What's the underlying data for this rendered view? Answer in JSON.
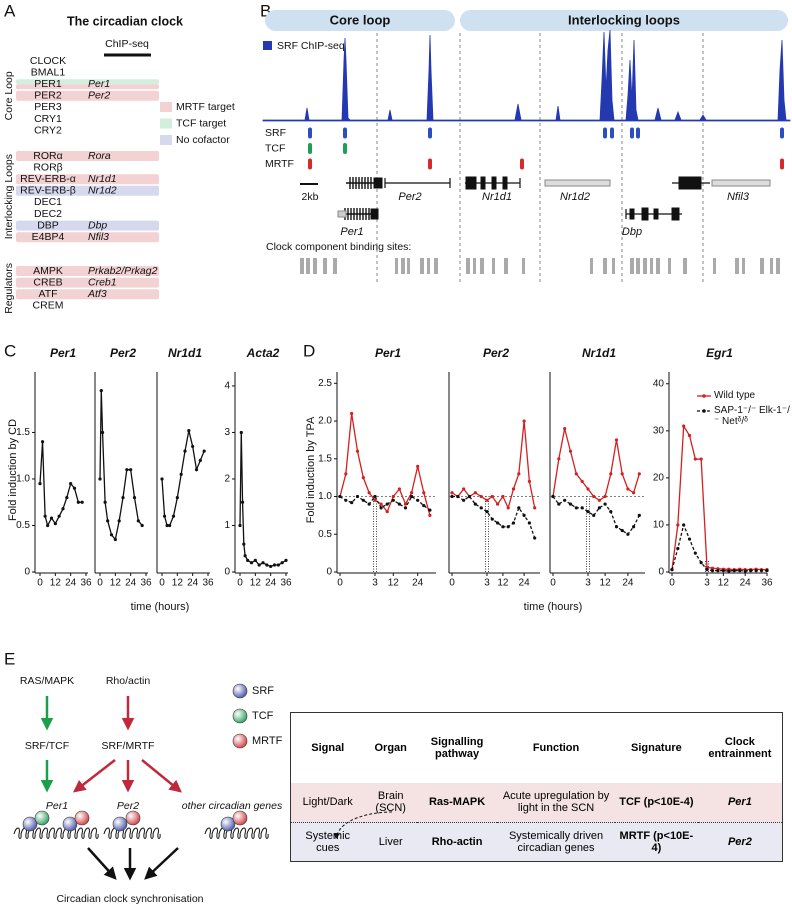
{
  "panels": {
    "A": {
      "label": "A",
      "title": "The circadian clock",
      "chipseq": "ChIP-seq",
      "sections": [
        {
          "name": "Core Loop",
          "rows": [
            {
              "protein": "CLOCK"
            },
            {
              "protein": "BMAL1"
            },
            {
              "protein": "PER1",
              "gene": "Per1",
              "colors": [
                "#d3eedd",
                "#f2d2d2"
              ]
            },
            {
              "protein": "PER2",
              "gene": "Per2",
              "colors": [
                "#f2d2d2"
              ]
            },
            {
              "protein": "PER3"
            },
            {
              "protein": "CRY1"
            },
            {
              "protein": "CRY2"
            }
          ]
        },
        {
          "name": "Interlocking Loops",
          "rows": [
            {
              "protein": "RORα",
              "gene": "Rora",
              "colors": [
                "#f2d2d2"
              ]
            },
            {
              "protein": "RORβ"
            },
            {
              "protein": "REV-ERB-α",
              "gene": "Nr1d1",
              "colors": [
                "#f2d2d2"
              ]
            },
            {
              "protein": "REV-ERB-β",
              "gene": "Nr1d2",
              "colors": [
                "#d6d9ee"
              ]
            },
            {
              "protein": "DEC1"
            },
            {
              "protein": "DEC2"
            },
            {
              "protein": "DBP",
              "gene": "Dbp",
              "colors": [
                "#d6d9ee"
              ]
            },
            {
              "protein": "E4BP4",
              "gene": "Nfil3",
              "colors": [
                "#f2d2d2"
              ]
            }
          ]
        },
        {
          "name": "Regulators",
          "rows": [
            {
              "protein": "AMPK",
              "gene": "Prkab2/Prkag2",
              "colors": [
                "#f2d2d2"
              ]
            },
            {
              "protein": "CREB",
              "gene": "Creb1",
              "colors": [
                "#f2d2d2"
              ]
            },
            {
              "protein": "ATF",
              "gene": "Atf3",
              "colors": [
                "#f2d2d2"
              ]
            },
            {
              "protein": "CREM"
            }
          ]
        }
      ],
      "legend": [
        {
          "name": "MRTF target",
          "color": "#f2d2d2"
        },
        {
          "name": "TCF target",
          "color": "#d3eedd"
        },
        {
          "name": "No cofactor",
          "color": "#d6d9ee"
        }
      ]
    },
    "B": {
      "label": "B",
      "headers": [
        "Core loop",
        "Interlocking loops"
      ],
      "legend": {
        "name": "SRF ChIP-seq",
        "color": "#2438b0"
      },
      "tracks": [
        {
          "name": "SRF",
          "color": "#2b4fc0"
        },
        {
          "name": "TCF",
          "color": "#1f9e55"
        },
        {
          "name": "MRTF",
          "color": "#d42a2a"
        }
      ],
      "genes": [
        "Per1",
        "Per2",
        "Nr1d1",
        "Nr1d2",
        "Dbp",
        "Nfil3"
      ],
      "scale": "2kb",
      "sites_label": "Clock component binding sites:"
    },
    "C": {
      "label": "C",
      "ylabel": "Fold induction by CD",
      "xlabel": "time (hours)"
    },
    "D": {
      "label": "D",
      "ylabel": "Fold induction by TPA",
      "xlabel": "time (hours)"
    },
    "E": {
      "label": "E",
      "diagram": {
        "inputs": [
          "RAS/MAPK",
          "Rho/actin"
        ],
        "mediators": [
          "SRF/TCF",
          "SRF/MRTF"
        ],
        "targets": [
          "Per1",
          "Per2",
          "other circadian genes"
        ],
        "outcome": "Circadian clock synchronisation",
        "legend": [
          {
            "name": "SRF",
            "color": "#4b55a8"
          },
          {
            "name": "TCF",
            "color": "#2fa060"
          },
          {
            "name": "MRTF",
            "color": "#d04040"
          }
        ]
      },
      "table": {
        "header": [
          "Signal",
          "Organ",
          "Signalling pathway",
          "Function",
          "Signature",
          "Clock entrainment"
        ],
        "rows": [
          [
            "Light/Dark",
            "Brain (SCN)",
            "Ras-MAPK",
            "Acute upregulation by light in the SCN",
            "TCF (p<10E-4)",
            "Per1"
          ],
          [
            "Systemic cues",
            "Liver",
            "Rho-actin",
            "Systemically driven circadian genes",
            "MRTF (p<10E-4)",
            "Per2"
          ]
        ]
      }
    }
  },
  "chart_data": [
    {
      "type": "line",
      "title": "Per1",
      "x": [
        0,
        2,
        4,
        6,
        9,
        12,
        15,
        18,
        21,
        24,
        27,
        30,
        33
      ],
      "series": [
        {
          "color": "#111111",
          "values": [
            0.95,
            1.4,
            0.6,
            0.5,
            0.58,
            0.52,
            0.6,
            0.68,
            0.8,
            0.95,
            0.9,
            0.75,
            0.75
          ]
        }
      ],
      "xlim": [
        0,
        36
      ],
      "xticks": [
        0,
        12,
        24,
        36
      ],
      "ylim": [
        0,
        2.15
      ],
      "yticks": [
        0,
        0.5,
        {
          "value": 1,
          "label": "1.0"
        },
        1.5
      ]
    },
    {
      "type": "line",
      "title": "Per2",
      "x": [
        0,
        1,
        2,
        4,
        6,
        9,
        12,
        15,
        18,
        21,
        24,
        27,
        30,
        33
      ],
      "series": [
        {
          "color": "#111111",
          "values": [
            1.0,
            1.95,
            1.5,
            0.75,
            0.55,
            0.4,
            0.35,
            0.55,
            0.8,
            1.1,
            1.1,
            0.8,
            0.55,
            0.5
          ]
        }
      ],
      "xlim": [
        0,
        36
      ],
      "xticks": [
        0,
        12,
        24,
        36
      ],
      "ylim": [
        0,
        2.15
      ]
    },
    {
      "type": "line",
      "title": "Nr1d1",
      "x": [
        0,
        2,
        4,
        6,
        9,
        12,
        15,
        18,
        21,
        24,
        27,
        30,
        33
      ],
      "series": [
        {
          "color": "#111111",
          "values": [
            1.0,
            0.6,
            0.5,
            0.5,
            0.6,
            0.8,
            1.05,
            1.3,
            1.52,
            1.35,
            1.1,
            1.2,
            1.3
          ]
        }
      ],
      "xlim": [
        0,
        36
      ],
      "xticks": [
        0,
        12,
        24,
        36
      ],
      "ylim": [
        0,
        2.15
      ]
    },
    {
      "type": "line",
      "title": "Acta2",
      "x": [
        0,
        1,
        2,
        3,
        4,
        6,
        9,
        12,
        15,
        18,
        21,
        24,
        27,
        30,
        33,
        36
      ],
      "series": [
        {
          "color": "#111111",
          "values": [
            1.0,
            3.0,
            1.5,
            0.6,
            0.35,
            0.25,
            0.2,
            0.25,
            0.15,
            0.2,
            0.15,
            0.12,
            0.15,
            0.15,
            0.2,
            0.25
          ]
        }
      ],
      "xlim": [
        0,
        36
      ],
      "xticks": [
        0,
        12,
        24,
        36
      ],
      "ylim": [
        0,
        4.3
      ],
      "yticks": [
        0,
        1,
        2,
        3,
        4
      ]
    },
    {
      "type": "line",
      "title": "Per1",
      "x": [
        0,
        0.5,
        1,
        1.5,
        2,
        2.5,
        3,
        6,
        9,
        12,
        15,
        18,
        21,
        24,
        27,
        30
      ],
      "series": [
        {
          "color": "#d42020",
          "values": [
            1.0,
            1.3,
            2.1,
            1.6,
            1.25,
            1.05,
            0.95,
            0.9,
            0.8,
            1.0,
            1.1,
            0.9,
            1.05,
            1.4,
            1.05,
            0.75
          ]
        },
        {
          "color": "#111111",
          "dash": true,
          "values": [
            1.0,
            0.95,
            0.92,
            1.0,
            0.95,
            0.9,
            1.0,
            0.85,
            0.9,
            0.95,
            0.9,
            0.85,
            1.0,
            0.95,
            0.88,
            0.82
          ]
        }
      ],
      "xlim": [
        0,
        33
      ],
      "xticks": [
        0,
        3,
        12,
        24
      ],
      "refline": 1,
      "vline": 3,
      "ylim": [
        0,
        2.65
      ],
      "yticks": [
        0,
        0.5,
        {
          "value": 1,
          "label": "1.0"
        },
        1.5,
        {
          "value": 2,
          "label": "2.0"
        },
        2.5
      ]
    },
    {
      "type": "line",
      "title": "Per2",
      "x": [
        0,
        0.5,
        1,
        1.5,
        2,
        2.5,
        3,
        6,
        9,
        12,
        15,
        18,
        21,
        24,
        27,
        30
      ],
      "series": [
        {
          "color": "#d42020",
          "values": [
            1.05,
            1.0,
            1.1,
            1.0,
            1.05,
            1.0,
            0.95,
            1.0,
            0.9,
            1.0,
            0.85,
            1.1,
            1.3,
            2.0,
            1.2,
            0.85
          ]
        },
        {
          "color": "#111111",
          "dash": true,
          "values": [
            1.0,
            1.0,
            0.95,
            1.0,
            0.9,
            0.85,
            0.8,
            0.7,
            0.65,
            0.6,
            0.6,
            0.65,
            0.85,
            0.75,
            0.65,
            0.45
          ]
        }
      ],
      "xlim": [
        0,
        33
      ],
      "xticks": [
        0,
        3,
        12,
        24
      ],
      "refline": 1,
      "vline": 3,
      "ylim": [
        0,
        2.65
      ]
    },
    {
      "type": "line",
      "title": "Nr1d1",
      "x": [
        0,
        0.5,
        1,
        1.5,
        2,
        2.5,
        3,
        6,
        9,
        12,
        15,
        18,
        21,
        24,
        27,
        30
      ],
      "series": [
        {
          "color": "#d42020",
          "values": [
            1.0,
            1.5,
            1.9,
            1.6,
            1.3,
            1.2,
            1.1,
            1.0,
            0.95,
            1.0,
            1.3,
            1.75,
            1.3,
            1.1,
            1.05,
            1.3
          ]
        },
        {
          "color": "#111111",
          "dash": true,
          "values": [
            1.0,
            0.9,
            0.95,
            0.9,
            0.85,
            0.85,
            0.8,
            0.75,
            0.85,
            0.9,
            0.8,
            0.6,
            0.55,
            0.5,
            0.6,
            0.75
          ]
        }
      ],
      "xlim": [
        0,
        33
      ],
      "xticks": [
        0,
        3,
        12,
        24
      ],
      "refline": 1,
      "vline": 3,
      "ylim": [
        0,
        2.65
      ]
    },
    {
      "type": "line",
      "title": "Egr1",
      "x": [
        0,
        0.5,
        1,
        1.5,
        2,
        2.5,
        3,
        6,
        9,
        12,
        15,
        18,
        21,
        24,
        27,
        30,
        33,
        36
      ],
      "series": [
        {
          "name": "Wild type",
          "color": "#d42020",
          "values": [
            0.5,
            10,
            31,
            29,
            24,
            24,
            1.0,
            0.8,
            0.7,
            0.6,
            0.6,
            0.5,
            0.6,
            0.5,
            0.5,
            0.6,
            0.5,
            0.5
          ]
        },
        {
          "name": "SAP-1⁻/⁻ Elk-1⁻/⁻ Netᵟ/ᵟ",
          "color": "#111111",
          "dash": true,
          "values": [
            0.5,
            5,
            10,
            7,
            4,
            2,
            0.5,
            0.3,
            0.3,
            0.3,
            0.2,
            0.3,
            0.3,
            0.2,
            0.3,
            0.3,
            0.3,
            0.3
          ]
        }
      ],
      "xlim": [
        0,
        36
      ],
      "xticks": [
        0,
        3,
        12,
        24,
        36
      ],
      "vline": 3,
      "ylim": [
        0,
        42.5
      ],
      "yticks": [
        0,
        10,
        20,
        30,
        40
      ],
      "legend": "upper right"
    }
  ]
}
